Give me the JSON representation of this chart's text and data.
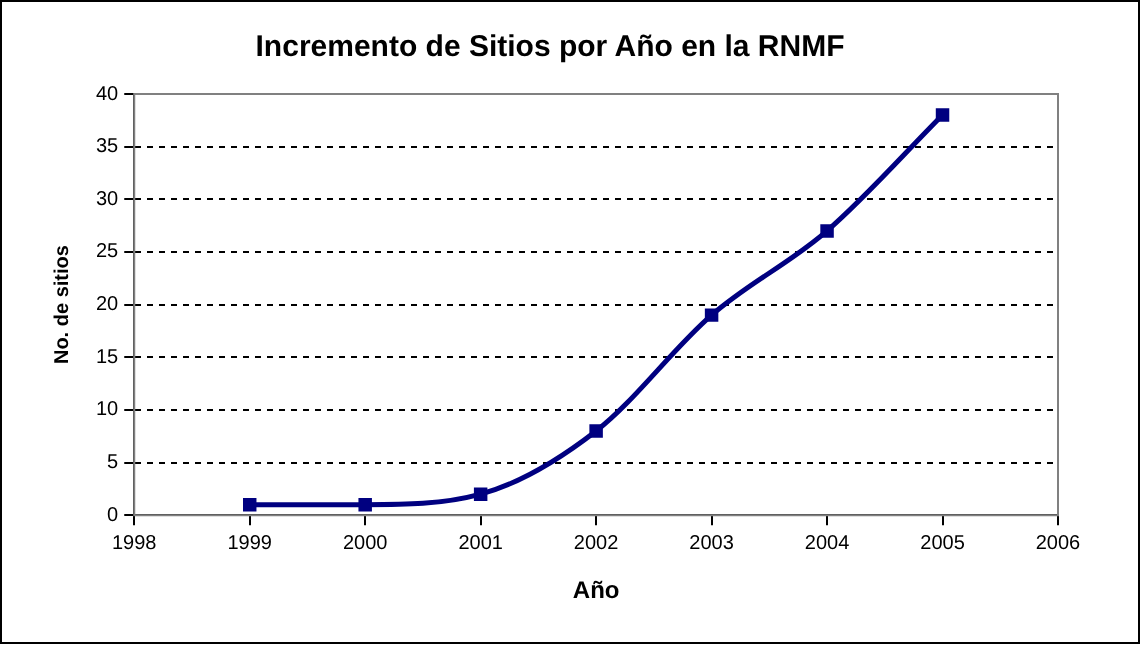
{
  "chart_data": {
    "type": "line",
    "title": "Incremento de Sitios por Año en la RNMF",
    "xlabel": "Año",
    "ylabel": "No. de sitios",
    "x": [
      1999,
      2000,
      2001,
      2002,
      2003,
      2004,
      2005
    ],
    "series": [
      {
        "color": "#000080",
        "values": [
          1,
          1,
          2,
          8,
          19,
          27,
          38
        ]
      }
    ],
    "xlim": [
      1998,
      2006
    ],
    "xticks": [
      1998,
      1999,
      2000,
      2001,
      2002,
      2003,
      2004,
      2005,
      2006
    ],
    "ylim": [
      0,
      40
    ],
    "yticks": [
      0,
      5,
      10,
      15,
      20,
      25,
      30,
      35,
      40
    ],
    "grid": "y",
    "legend": false,
    "marker": "square",
    "line_style": "solid"
  }
}
